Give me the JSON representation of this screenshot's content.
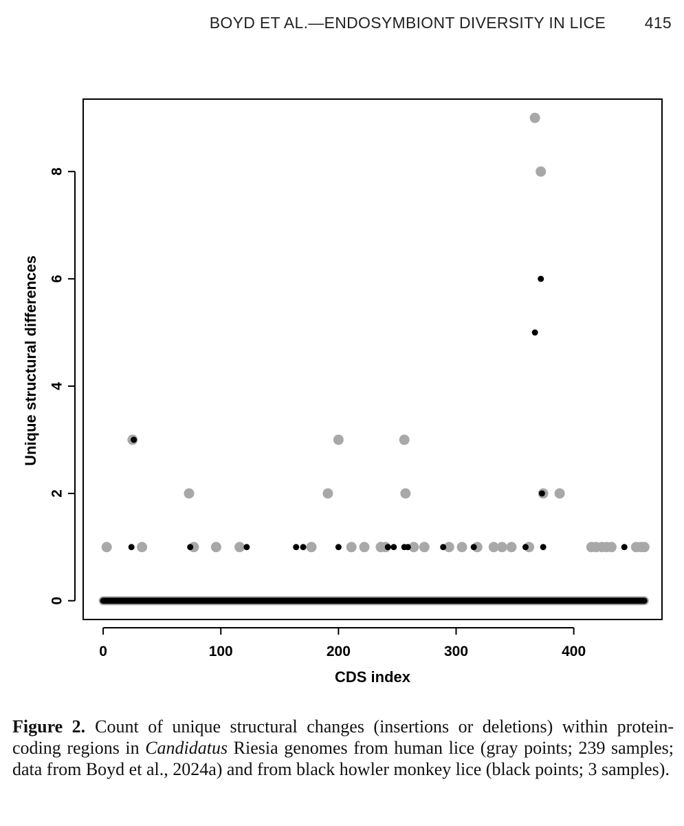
{
  "header": {
    "running_title": "BOYD ET AL.—ENDOSYMBIONT DIVERSITY IN LICE",
    "page_number": "415"
  },
  "caption": {
    "label": "Figure 2.",
    "text_a": "Count of unique structural changes (insertions or deletions) within protein-coding regions in ",
    "genus": "Candidatus",
    "text_b": " Riesia genomes from human lice (gray points; 239 samples; data from Boyd et al., 2024a) and from black howler monkey lice (black points; 3 samples)."
  },
  "colors": {
    "gray": "#a8a8a8",
    "black": "#000000"
  },
  "chart_data": {
    "type": "scatter",
    "xlabel": "CDS index",
    "ylabel": "Unique structural differences",
    "xlim": [
      -17,
      475
    ],
    "ylim": [
      -0.35,
      9.35
    ],
    "xticks": [
      0,
      100,
      200,
      300,
      400
    ],
    "yticks": [
      0,
      2,
      4,
      6,
      8
    ],
    "grid": false,
    "baseline_range": [
      0,
      460
    ],
    "series": [
      {
        "color": "gray",
        "points": [
          {
            "x": 3,
            "y": 1
          },
          {
            "x": 25,
            "y": 3
          },
          {
            "x": 33,
            "y": 1
          },
          {
            "x": 73,
            "y": 2
          },
          {
            "x": 77,
            "y": 1
          },
          {
            "x": 96,
            "y": 1
          },
          {
            "x": 116,
            "y": 1
          },
          {
            "x": 177,
            "y": 1
          },
          {
            "x": 191,
            "y": 2
          },
          {
            "x": 200,
            "y": 3
          },
          {
            "x": 211,
            "y": 1
          },
          {
            "x": 222,
            "y": 1
          },
          {
            "x": 236,
            "y": 1
          },
          {
            "x": 240,
            "y": 1
          },
          {
            "x": 256,
            "y": 3
          },
          {
            "x": 257,
            "y": 2
          },
          {
            "x": 264,
            "y": 1
          },
          {
            "x": 273,
            "y": 1
          },
          {
            "x": 294,
            "y": 1
          },
          {
            "x": 305,
            "y": 1
          },
          {
            "x": 318,
            "y": 1
          },
          {
            "x": 332,
            "y": 1
          },
          {
            "x": 339,
            "y": 1
          },
          {
            "x": 347,
            "y": 1
          },
          {
            "x": 362,
            "y": 1
          },
          {
            "x": 367,
            "y": 9
          },
          {
            "x": 372,
            "y": 8
          },
          {
            "x": 374,
            "y": 2
          },
          {
            "x": 388,
            "y": 2
          },
          {
            "x": 415,
            "y": 1
          },
          {
            "x": 419,
            "y": 1
          },
          {
            "x": 424,
            "y": 1
          },
          {
            "x": 428,
            "y": 1
          },
          {
            "x": 432,
            "y": 1
          },
          {
            "x": 453,
            "y": 1
          },
          {
            "x": 457,
            "y": 1
          },
          {
            "x": 460,
            "y": 1
          }
        ]
      },
      {
        "color": "black",
        "points": [
          {
            "x": 24,
            "y": 1
          },
          {
            "x": 26,
            "y": 3
          },
          {
            "x": 74,
            "y": 1
          },
          {
            "x": 122,
            "y": 1
          },
          {
            "x": 164,
            "y": 1
          },
          {
            "x": 170,
            "y": 1
          },
          {
            "x": 200,
            "y": 1
          },
          {
            "x": 242,
            "y": 1
          },
          {
            "x": 247,
            "y": 1
          },
          {
            "x": 256,
            "y": 1
          },
          {
            "x": 259,
            "y": 1
          },
          {
            "x": 289,
            "y": 1
          },
          {
            "x": 315,
            "y": 1
          },
          {
            "x": 359,
            "y": 1
          },
          {
            "x": 367,
            "y": 5
          },
          {
            "x": 372,
            "y": 6
          },
          {
            "x": 373,
            "y": 2
          },
          {
            "x": 374,
            "y": 1
          },
          {
            "x": 443,
            "y": 1
          }
        ]
      }
    ]
  }
}
